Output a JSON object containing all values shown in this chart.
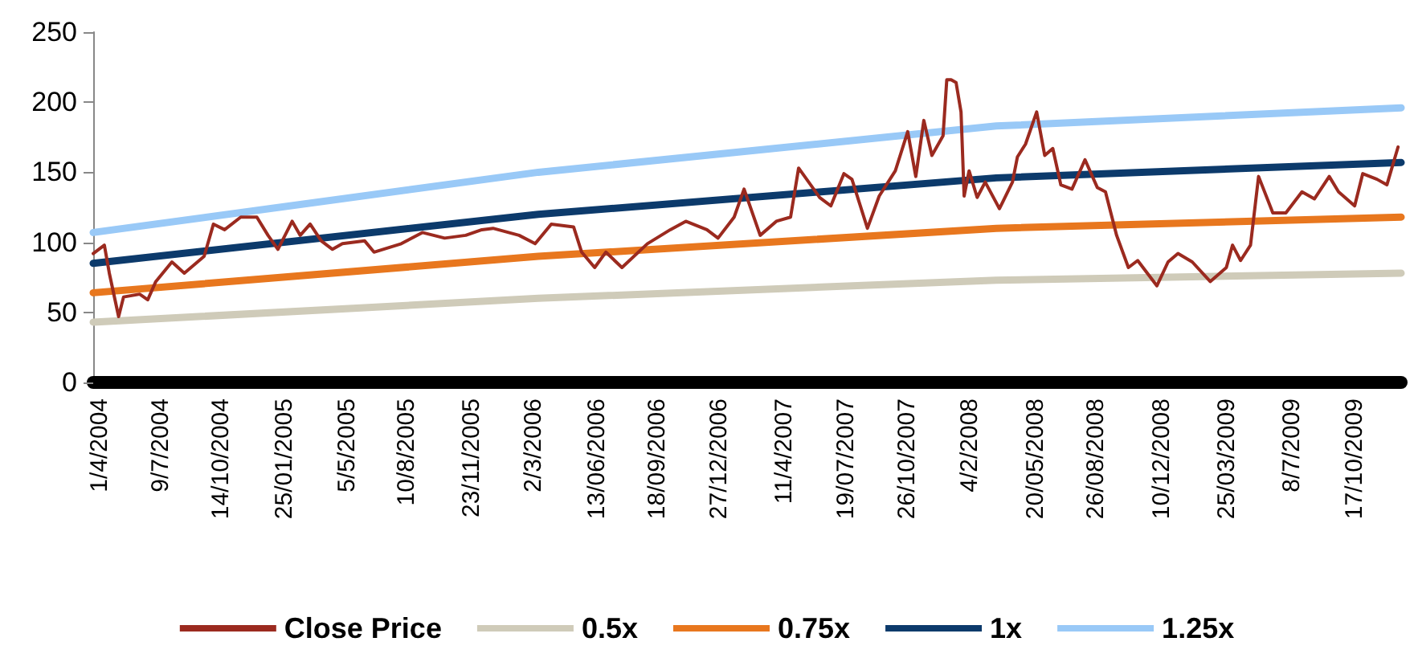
{
  "chart_data": {
    "type": "line",
    "grid": false,
    "legend": "bottom",
    "marker": "none",
    "line_style": "solid",
    "ylim": [
      0,
      250
    ],
    "yticks": [
      0,
      50,
      100,
      150,
      200,
      250
    ],
    "xlim": [
      "2004-03-22",
      "2009-12-31"
    ],
    "xticks": [
      {
        "value": "2004-04-01",
        "label": "1/4/2004"
      },
      {
        "value": "2004-07-09",
        "label": "9/7/2004"
      },
      {
        "value": "2004-10-14",
        "label": "14/10/2004"
      },
      {
        "value": "2005-01-25",
        "label": "25/01/2005"
      },
      {
        "value": "2005-05-05",
        "label": "5/5/2005"
      },
      {
        "value": "2005-08-10",
        "label": "10/8/2005"
      },
      {
        "value": "2005-11-23",
        "label": "23/11/2005"
      },
      {
        "value": "2006-03-02",
        "label": "2/3/2006"
      },
      {
        "value": "2006-06-13",
        "label": "13/06/2006"
      },
      {
        "value": "2006-09-18",
        "label": "18/09/2006"
      },
      {
        "value": "2006-12-27",
        "label": "27/12/2006"
      },
      {
        "value": "2007-04-11",
        "label": "11/4/2007"
      },
      {
        "value": "2007-07-19",
        "label": "19/07/2007"
      },
      {
        "value": "2007-10-26",
        "label": "26/10/2007"
      },
      {
        "value": "2008-02-04",
        "label": "4/2/2008"
      },
      {
        "value": "2008-05-20",
        "label": "20/05/2008"
      },
      {
        "value": "2008-08-26",
        "label": "26/08/2008"
      },
      {
        "value": "2008-12-10",
        "label": "10/12/2008"
      },
      {
        "value": "2009-03-25",
        "label": "25/03/2009"
      },
      {
        "value": "2009-07-08",
        "label": "8/7/2009"
      },
      {
        "value": "2009-10-17",
        "label": "17/10/2009"
      }
    ],
    "series": [
      {
        "name": "Close Price",
        "color": "#9b2a1f",
        "x": [
          "2004-03-22",
          "2004-04-09",
          "2004-04-17",
          "2004-05-02",
          "2004-05-10",
          "2004-06-05",
          "2004-06-18",
          "2004-07-01",
          "2004-07-27",
          "2004-08-16",
          "2004-09-17",
          "2004-10-02",
          "2004-10-20",
          "2004-11-15",
          "2004-12-11",
          "2004-12-29",
          "2005-01-14",
          "2005-02-06",
          "2005-02-19",
          "2005-03-07",
          "2005-03-25",
          "2005-04-12",
          "2005-04-28",
          "2005-06-03",
          "2005-06-18",
          "2005-08-01",
          "2005-09-04",
          "2005-10-10",
          "2005-11-13",
          "2005-12-09",
          "2005-12-27",
          "2006-02-07",
          "2006-03-05",
          "2006-03-31",
          "2006-05-06",
          "2006-05-19",
          "2006-06-09",
          "2006-06-27",
          "2006-07-23",
          "2006-09-02",
          "2006-10-09",
          "2006-11-03",
          "2006-12-07",
          "2006-12-25",
          "2007-01-20",
          "2007-02-05",
          "2007-03-03",
          "2007-03-29",
          "2007-04-21",
          "2007-05-04",
          "2007-06-07",
          "2007-06-25",
          "2007-07-16",
          "2007-07-29",
          "2007-08-23",
          "2007-09-11",
          "2007-10-07",
          "2007-10-27",
          "2007-11-09",
          "2007-11-22",
          "2007-12-05",
          "2007-12-23",
          "2007-12-29",
          "2008-01-05",
          "2008-01-13",
          "2008-01-21",
          "2008-01-26",
          "2008-02-03",
          "2008-02-16",
          "2008-02-29",
          "2008-03-23",
          "2008-04-13",
          "2008-04-21",
          "2008-05-04",
          "2008-05-22",
          "2008-06-04",
          "2008-06-17",
          "2008-06-30",
          "2008-07-18",
          "2008-08-08",
          "2008-08-28",
          "2008-09-10",
          "2008-09-28",
          "2008-10-17",
          "2008-11-01",
          "2008-12-02",
          "2008-12-20",
          "2009-01-05",
          "2009-01-28",
          "2009-02-26",
          "2009-03-24",
          "2009-04-03",
          "2009-04-16",
          "2009-05-02",
          "2009-05-15",
          "2009-06-07",
          "2009-06-28",
          "2009-07-24",
          "2009-08-13",
          "2009-09-06",
          "2009-09-21",
          "2009-10-17",
          "2009-10-30",
          "2009-11-22",
          "2009-12-08",
          "2009-12-26"
        ],
        "values": [
          92,
          98,
          78,
          47,
          61,
          63,
          59,
          72,
          86,
          78,
          90,
          113,
          109,
          118,
          118,
          105,
          95,
          115,
          105,
          113,
          101,
          95,
          99,
          101,
          93,
          99,
          107,
          103,
          105,
          109,
          110,
          105,
          99,
          113,
          111,
          93,
          82,
          93,
          82,
          99,
          109,
          115,
          109,
          103,
          118,
          138,
          105,
          115,
          118,
          153,
          132,
          126,
          149,
          145,
          110,
          133,
          151,
          179,
          147,
          187,
          162,
          176,
          216,
          216,
          214,
          193,
          133,
          151,
          132,
          143,
          124,
          143,
          161,
          170,
          193,
          162,
          167,
          141,
          138,
          159,
          139,
          136,
          105,
          82,
          87,
          69,
          86,
          92,
          86,
          72,
          82,
          98,
          87,
          98,
          147,
          121,
          121,
          136,
          131,
          147,
          136,
          126,
          149,
          145,
          141,
          168
        ]
      },
      {
        "name": "0.5x",
        "color": "#cfcbb9",
        "x": [
          "2004-03-22",
          "2006-03-10",
          "2008-03-18",
          "2009-12-31"
        ],
        "values": [
          43,
          60,
          73,
          78
        ]
      },
      {
        "name": "0.75x",
        "color": "#e8771e",
        "x": [
          "2004-03-22",
          "2006-03-10",
          "2008-03-18",
          "2009-12-31"
        ],
        "values": [
          64,
          90,
          110,
          118
        ]
      },
      {
        "name": "1x",
        "color": "#0c3a6b",
        "x": [
          "2004-03-22",
          "2006-03-10",
          "2008-03-18",
          "2009-12-31"
        ],
        "values": [
          85,
          120,
          146,
          157
        ]
      },
      {
        "name": "1.25x",
        "color": "#99c9f7",
        "x": [
          "2004-03-22",
          "2006-03-10",
          "2008-03-18",
          "2009-12-31"
        ],
        "values": [
          107,
          150,
          183,
          196
        ]
      }
    ]
  }
}
